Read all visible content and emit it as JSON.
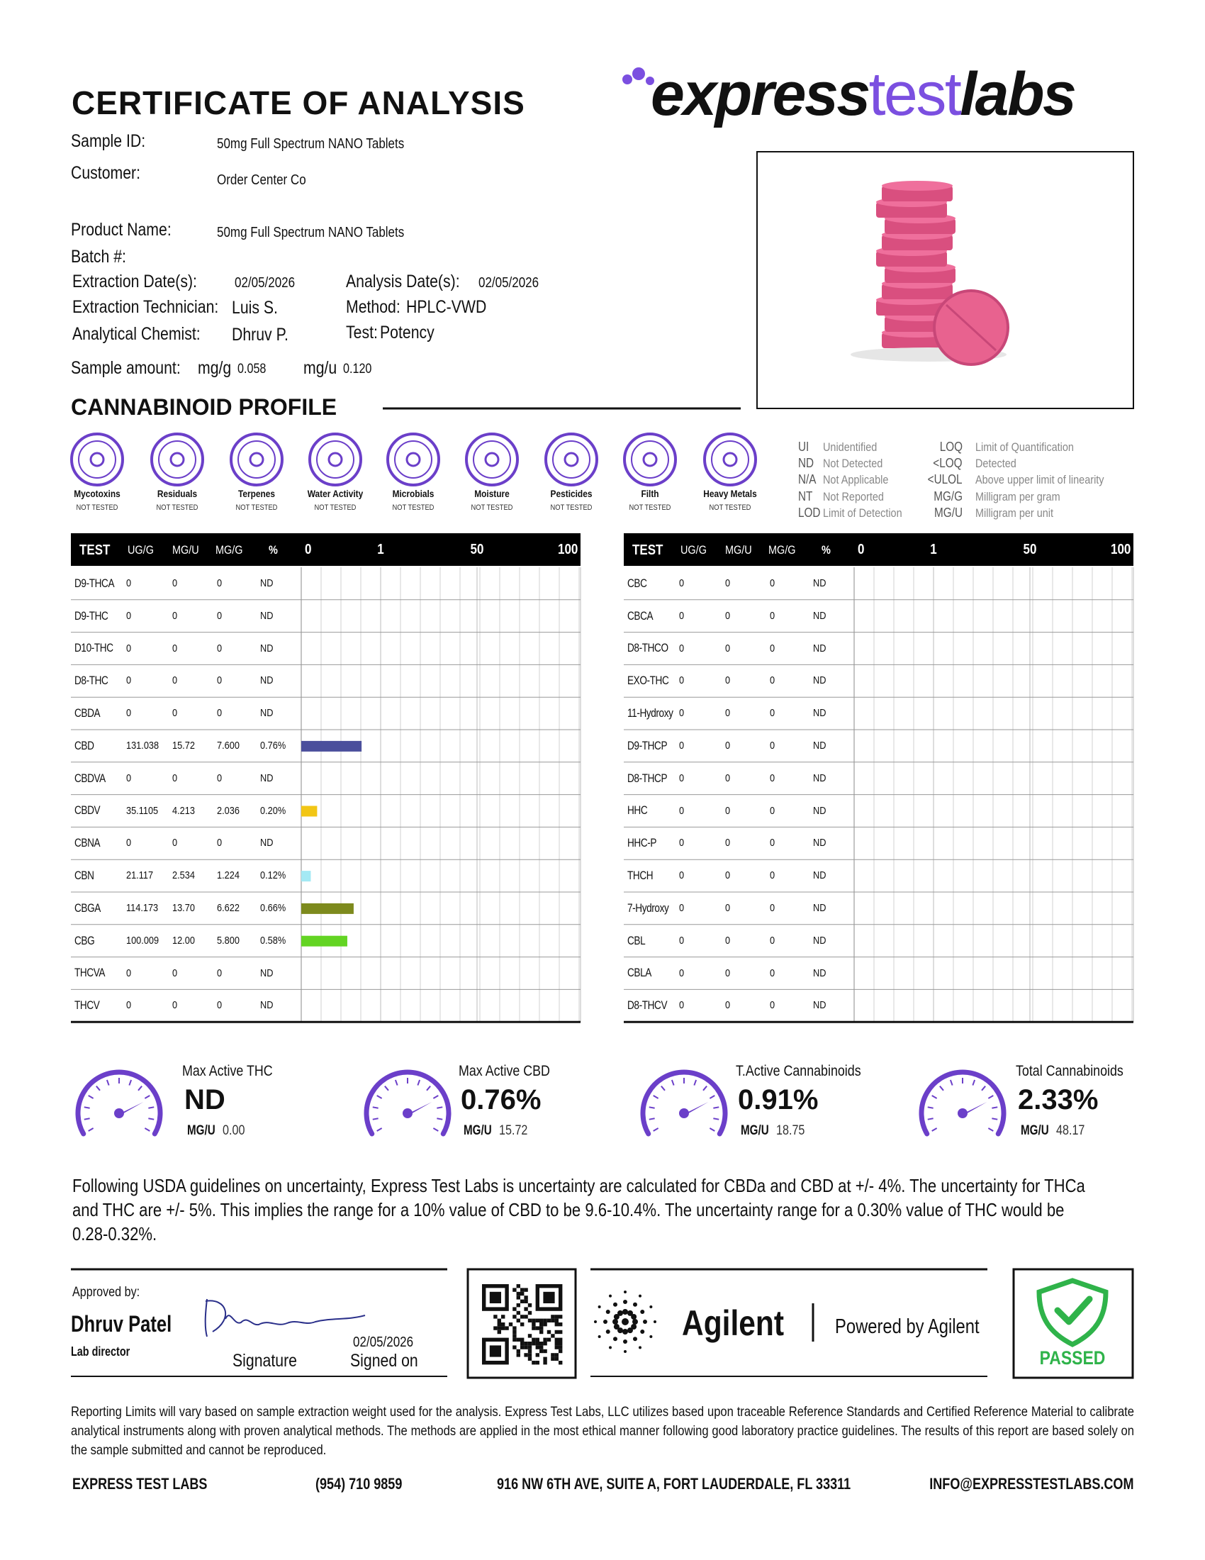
{
  "header": {
    "title": "CERTIFICATE OF ANALYSIS",
    "logo": [
      "express",
      "test",
      "labs"
    ]
  },
  "details": {
    "sample_id": {
      "label": "Sample ID:",
      "value": "50mg Full Spectrum NANO Tablets"
    },
    "customer": {
      "label": "Customer:",
      "value": "Order Center Co"
    },
    "product_name": {
      "label": "Product Name:",
      "value": "50mg Full Spectrum NANO Tablets"
    },
    "batch": {
      "label": "Batch #:"
    },
    "extraction_date": {
      "label": "Extraction Date(s):",
      "value": "02/05/2026"
    },
    "analysis_date": {
      "label": "Analysis Date(s):",
      "value": "02/05/2026"
    },
    "extraction_technician": {
      "label": "Extraction Technician:",
      "value": "Luis S."
    },
    "method": {
      "label": "Method:",
      "value": "HPLC-VWD"
    },
    "analytical_chemist": {
      "label": "Analytical Chemist:",
      "value": "Dhruv P."
    },
    "test": {
      "label": "Test:",
      "value": "Potency"
    },
    "sample_amount": {
      "label": "Sample amount:",
      "mg_g_label": "mg/g",
      "mg_g": "0.058",
      "mg_u_label": "mg/u",
      "mg_u": "0.120"
    }
  },
  "profile": {
    "title": "CANNABINOID PROFILE",
    "tests": [
      {
        "label": "Mycotoxins",
        "status": "NOT TESTED"
      },
      {
        "label": "Residuals",
        "status": "NOT TESTED"
      },
      {
        "label": "Terpenes",
        "status": "NOT TESTED"
      },
      {
        "label": "Water Activity",
        "status": "NOT TESTED"
      },
      {
        "label": "Microbials",
        "status": "NOT TESTED"
      },
      {
        "label": "Moisture",
        "status": "NOT TESTED"
      },
      {
        "label": "Pesticides",
        "status": "NOT TESTED"
      },
      {
        "label": "Filth",
        "status": "NOT TESTED"
      },
      {
        "label": "Heavy Metals",
        "status": "NOT TESTED"
      }
    ],
    "legend": [
      [
        [
          "UI",
          "Unidentified"
        ],
        [
          "ND",
          "Not Detected"
        ],
        [
          "N/A",
          "Not Applicable"
        ],
        [
          "NT",
          "Not Reported"
        ],
        [
          "LOD",
          "Limit of Detection"
        ]
      ],
      [
        [
          "LOQ",
          "Limit of Quantification"
        ],
        [
          "<LOQ",
          "Detected"
        ],
        [
          "<ULOL",
          "Above upper limit of linearity"
        ],
        [
          "MG/G",
          "Milligram per gram"
        ],
        [
          "MG/U",
          "Milligram per unit"
        ]
      ]
    ]
  },
  "table": {
    "header": [
      "TEST",
      "UG/G",
      "MG/U",
      "MG/G",
      "%"
    ],
    "scale_ticks": [
      0,
      1,
      50,
      100
    ],
    "left": [
      {
        "cells": [
          "D9-THCA",
          "0",
          "0",
          "0",
          "ND"
        ]
      },
      {
        "cells": [
          "D9-THC",
          "0",
          "0",
          "0",
          "ND"
        ]
      },
      {
        "cells": [
          "D10-THC",
          "0",
          "0",
          "0",
          "ND"
        ]
      },
      {
        "cells": [
          "D8-THC",
          "0",
          "0",
          "0",
          "ND"
        ]
      },
      {
        "cells": [
          "CBDA",
          "0",
          "0",
          "0",
          "ND"
        ]
      },
      {
        "cells": [
          "CBD",
          "131.038",
          "15.72",
          "7.600",
          "0.76%"
        ],
        "value": 0.76,
        "color": "#4b4f9c"
      },
      {
        "cells": [
          "CBDVA",
          "0",
          "0",
          "0",
          "ND"
        ]
      },
      {
        "cells": [
          "CBDV",
          "35.1105",
          "4.213",
          "2.036",
          "0.20%"
        ],
        "value": 0.2,
        "color": "#f2c615"
      },
      {
        "cells": [
          "CBNA",
          "0",
          "0",
          "0",
          "ND"
        ]
      },
      {
        "cells": [
          "CBN",
          "21.117",
          "2.534",
          "1.224",
          "0.12%"
        ],
        "value": 0.12,
        "color": "#a4e9f4"
      },
      {
        "cells": [
          "CBGA",
          "114.173",
          "13.70",
          "6.622",
          "0.66%"
        ],
        "value": 0.66,
        "color": "#7d8a1d"
      },
      {
        "cells": [
          "CBG",
          "100.009",
          "12.00",
          "5.800",
          "0.58%"
        ],
        "value": 0.58,
        "color": "#63d423"
      },
      {
        "cells": [
          "THCVA",
          "0",
          "0",
          "0",
          "ND"
        ]
      },
      {
        "cells": [
          "THCV",
          "0",
          "0",
          "0",
          "ND"
        ]
      }
    ],
    "right": [
      {
        "cells": [
          "CBC",
          "0",
          "0",
          "0",
          "ND"
        ]
      },
      {
        "cells": [
          "CBCA",
          "0",
          "0",
          "0",
          "ND"
        ]
      },
      {
        "cells": [
          "D8-THCO",
          "0",
          "0",
          "0",
          "ND"
        ]
      },
      {
        "cells": [
          "EXO-THC",
          "0",
          "0",
          "0",
          "ND"
        ]
      },
      {
        "cells": [
          "11-Hydroxy",
          "0",
          "0",
          "0",
          "ND"
        ]
      },
      {
        "cells": [
          "D9-THCP",
          "0",
          "0",
          "0",
          "ND"
        ]
      },
      {
        "cells": [
          "D8-THCP",
          "0",
          "0",
          "0",
          "ND"
        ]
      },
      {
        "cells": [
          "HHC",
          "0",
          "0",
          "0",
          "ND"
        ]
      },
      {
        "cells": [
          "HHC-P",
          "0",
          "0",
          "0",
          "ND"
        ]
      },
      {
        "cells": [
          "THCH",
          "0",
          "0",
          "0",
          "ND"
        ]
      },
      {
        "cells": [
          "7-Hydroxy",
          "0",
          "0",
          "0",
          "ND"
        ]
      },
      {
        "cells": [
          "CBL",
          "0",
          "0",
          "0",
          "ND"
        ]
      },
      {
        "cells": [
          "CBLA",
          "0",
          "0",
          "0",
          "ND"
        ]
      },
      {
        "cells": [
          "D8-THCV",
          "0",
          "0",
          "0",
          "ND"
        ]
      }
    ]
  },
  "summary": [
    {
      "label": "Max Active THC",
      "value": "ND",
      "unit": "MG/U",
      "amount": "0.00"
    },
    {
      "label": "Max Active CBD",
      "value": "0.76%",
      "unit": "MG/U",
      "amount": "15.72"
    },
    {
      "label": "T.Active Cannabinoids",
      "value": "0.91%",
      "unit": "MG/U",
      "amount": "18.75"
    },
    {
      "label": "Total Cannabinoids",
      "value": "2.33%",
      "unit": "MG/U",
      "amount": "48.17"
    }
  ],
  "uncertainty": "Following USDA guidelines on uncertainty, Express Test Labs is uncertainty are calculated for CBDa and CBD at +/- 4%. The uncertainty for THCa and THC are +/- 5%. This implies the range for a 10% value of CBD to be 9.6-10.4%. The uncertainty range for a 0.30% value of THC would be 0.28-0.32%.",
  "approval": {
    "label": "Approved by:",
    "name": "Dhruv Patel",
    "role": "Lab director",
    "signature_label": "Signature",
    "date": "02/05/2026",
    "signed_label": "Signed on"
  },
  "agilent": {
    "brand": "Agilent",
    "tagline": "Powered by Agilent"
  },
  "status": "PASSED",
  "disclaimer": "Reporting Limits will vary based on sample extraction weight used for the analysis. Express Test Labs, LLC utilizes based upon traceable Reference Standards and Certified Reference Material to calibrate analytical instruments along with proven analytical methods. The methods are applied in the most ethical manner following good laboratory practice guidelines. The results of this report are based solely on the sample submitted and cannot be reproduced.",
  "footer": [
    "EXPRESS TEST LABS",
    "(954) 710 9859",
    "916 NW 6TH AVE, SUITE A, FORT LAUDERDALE, FL 33311",
    "INFO@EXPRESSTESTLABS.COM"
  ]
}
